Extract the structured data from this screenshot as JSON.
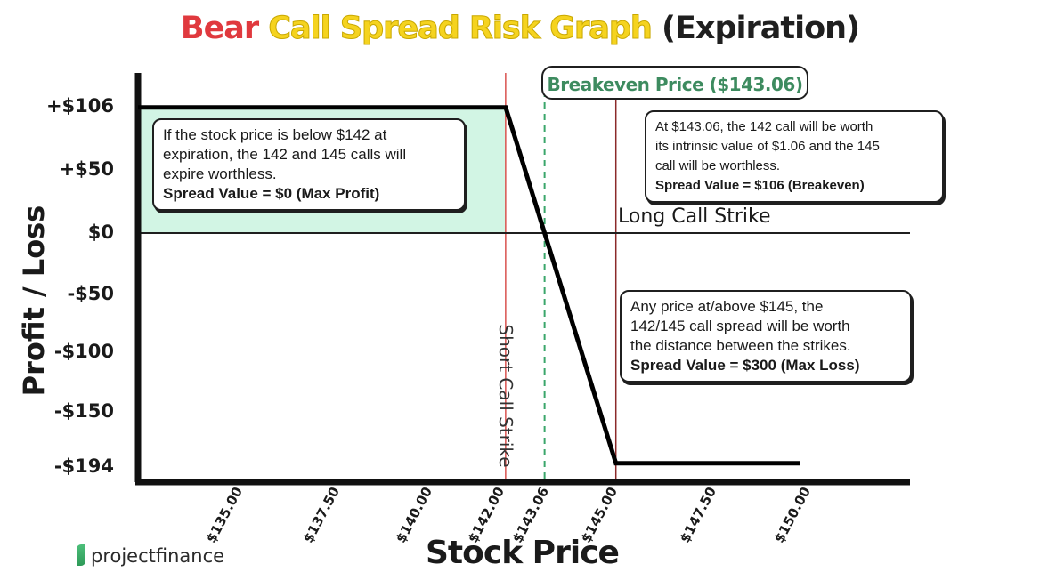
{
  "title": {
    "part1": "Bear",
    "part2": "Call Spread Risk Graph",
    "part3": "(Expiration)"
  },
  "chart_data": {
    "type": "line",
    "title": "Bear Call Spread Risk Graph (Expiration)",
    "xlabel": "Stock Price",
    "ylabel": "Profit / Loss",
    "x_tick_labels": [
      "$135.00",
      "$137.50",
      "$140.00",
      "$142.00",
      "$143.06",
      "$145.00",
      "$147.50",
      "$150.00"
    ],
    "x_ticks": [
      135,
      137.5,
      140,
      142,
      143.06,
      145,
      147.5,
      150
    ],
    "y_tick_labels": [
      "+$106",
      "+$50",
      "$0",
      "-$50",
      "-$100",
      "-$150",
      "-$194"
    ],
    "y_ticks": [
      106,
      50,
      0,
      -50,
      -100,
      -150,
      -194
    ],
    "xlim": [
      132,
      153
    ],
    "ylim": [
      -210,
      135
    ],
    "series": [
      {
        "x": [
          132,
          142,
          145,
          150
        ],
        "values": [
          106,
          106,
          -194,
          -194
        ]
      }
    ],
    "reference_lines": {
      "short_call_strike": {
        "x": 142,
        "label": "Short Call Strike",
        "color": "#d9534f"
      },
      "breakeven": {
        "x": 143.06,
        "label": "Breakeven Price ($143.06)",
        "color": "#3aa66b"
      },
      "long_call_strike": {
        "x": 145,
        "label": "Long Call Strike",
        "color": "#8b2a2a"
      }
    },
    "profit_fill_color": "#d2f5e4",
    "line_color": "#000000"
  },
  "annotations": {
    "max_profit": {
      "lines": [
        "If the stock price is below $142 at",
        "expiration, the 142 and 145 calls will",
        "expire worthless."
      ],
      "bold": "Spread Value = $0 (Max Profit)"
    },
    "breakeven": {
      "lines": [
        "At $143.06, the 142 call will be worth",
        "its intrinsic value of $1.06 and the 145",
        "call will be worthless."
      ],
      "bold": "Spread Value = $106 (Breakeven)"
    },
    "max_loss": {
      "lines": [
        "Any price at/above $145, the",
        "142/145 call spread will be worth",
        "the distance between the strikes."
      ],
      "bold": "Spread Value = $300 (Max Loss)"
    }
  },
  "brand": {
    "pre": "project",
    "post": "finance"
  }
}
